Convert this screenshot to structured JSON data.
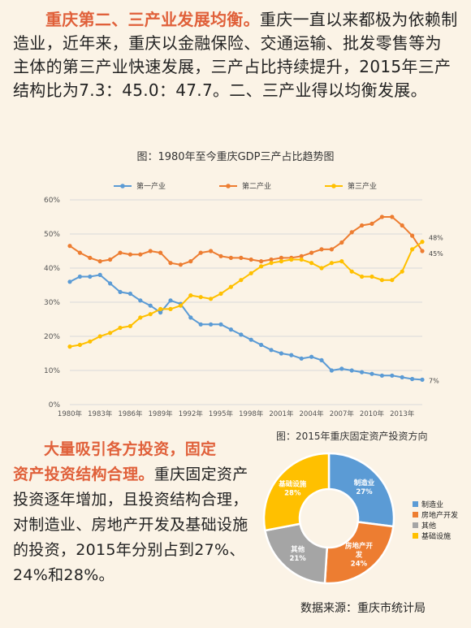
{
  "intro": {
    "highlight": "重庆第二、三产业发展均衡。",
    "text": "重庆一直以来都极为依赖制造业，近年来，重庆以金融保险、交通运输、批发零售等为主体的第三产业快速发展，三产占比持续提升，2015年三产结构比为7.3：45.0：47.7。二、三产业得以均衡发展。"
  },
  "chart1": {
    "title": "图：1980年至今重庆GDP三产占比趋势图"
  },
  "chart2": {
    "title": "图：2015年重庆固定资产投资方向"
  },
  "investment": {
    "highlight_line1": "大量吸引各方投资，固定",
    "highlight_line2": "资产投资结构合理。",
    "text": "重庆固定资产投资逐年增加，且投资结构合理，对制造业、房地产开发及基础设施的投资，2015年分别占到27%、24%和28%。"
  },
  "source": "数据来源：重庆市统计局",
  "chart_data": [
    {
      "type": "line",
      "title": "图：1980年至今重庆GDP三产占比趋势图",
      "x": [
        1980,
        1981,
        1982,
        1983,
        1984,
        1985,
        1986,
        1987,
        1988,
        1989,
        1990,
        1991,
        1992,
        1993,
        1994,
        1995,
        1996,
        1997,
        1998,
        1999,
        2000,
        2001,
        2002,
        2003,
        2004,
        2005,
        2006,
        2007,
        2008,
        2009,
        2010,
        2011,
        2012,
        2013,
        2014,
        2015
      ],
      "x_tick_labels": [
        "1980年",
        "1983年",
        "1986年",
        "1989年",
        "1992年",
        "1995年",
        "1998年",
        "2001年",
        "2004年",
        "2007年",
        "2010年",
        "2013年"
      ],
      "ylim": [
        0,
        60
      ],
      "y_tick_labels": [
        "0%",
        "10%",
        "20%",
        "30%",
        "40%",
        "50%",
        "60%"
      ],
      "legend_position": "top",
      "series": [
        {
          "name": "第一产业",
          "color": "#5b9bd5",
          "values": [
            36,
            37.5,
            37.5,
            38,
            35.5,
            33,
            32.5,
            30.5,
            29,
            27,
            30.5,
            29.5,
            25.5,
            23.5,
            23.5,
            23.5,
            22,
            20.5,
            19,
            17.5,
            16,
            15,
            14.5,
            13.5,
            14,
            13,
            10,
            10.5,
            10,
            9.5,
            9,
            8.5,
            8.5,
            8,
            7.5,
            7.3
          ],
          "end_label": "7%"
        },
        {
          "name": "第二产业",
          "color": "#ed7d31",
          "values": [
            46.5,
            44.5,
            43,
            42,
            42.5,
            44.5,
            44,
            44,
            45,
            44.5,
            41.5,
            41,
            42,
            44.5,
            45,
            43.5,
            43,
            43,
            42.5,
            42,
            42.5,
            43,
            43,
            43.5,
            44.5,
            45.5,
            45.5,
            47.5,
            50.5,
            52.5,
            53,
            55,
            55,
            52.5,
            49.5,
            45
          ],
          "end_label": "45%"
        },
        {
          "name": "第三产业",
          "color": "#ffc000",
          "values": [
            17,
            17.5,
            18.5,
            20,
            21,
            22.5,
            23,
            25.5,
            26.5,
            28,
            28,
            29,
            32,
            31.5,
            31,
            32.5,
            34.5,
            36.5,
            38.5,
            40.5,
            41.5,
            42,
            42.5,
            42.5,
            41.5,
            40,
            41.5,
            42,
            39,
            37.5,
            37.5,
            36.5,
            36.5,
            39,
            45.5,
            47.7
          ],
          "end_label": "48%"
        }
      ]
    },
    {
      "type": "pie",
      "title": "图：2015年重庆固定资产投资方向",
      "categories": [
        "制造业",
        "房地产开发",
        "其他",
        "基础设施"
      ],
      "values": [
        27,
        24,
        21,
        28
      ],
      "slice_labels": [
        "制造业\n27%",
        "房地产开\n发\n24%",
        "其他\n21%",
        "基础设施\n28%"
      ],
      "colors": [
        "#5b9bd5",
        "#ed7d31",
        "#a5a5a5",
        "#ffc000"
      ],
      "legend_position": "right"
    }
  ]
}
